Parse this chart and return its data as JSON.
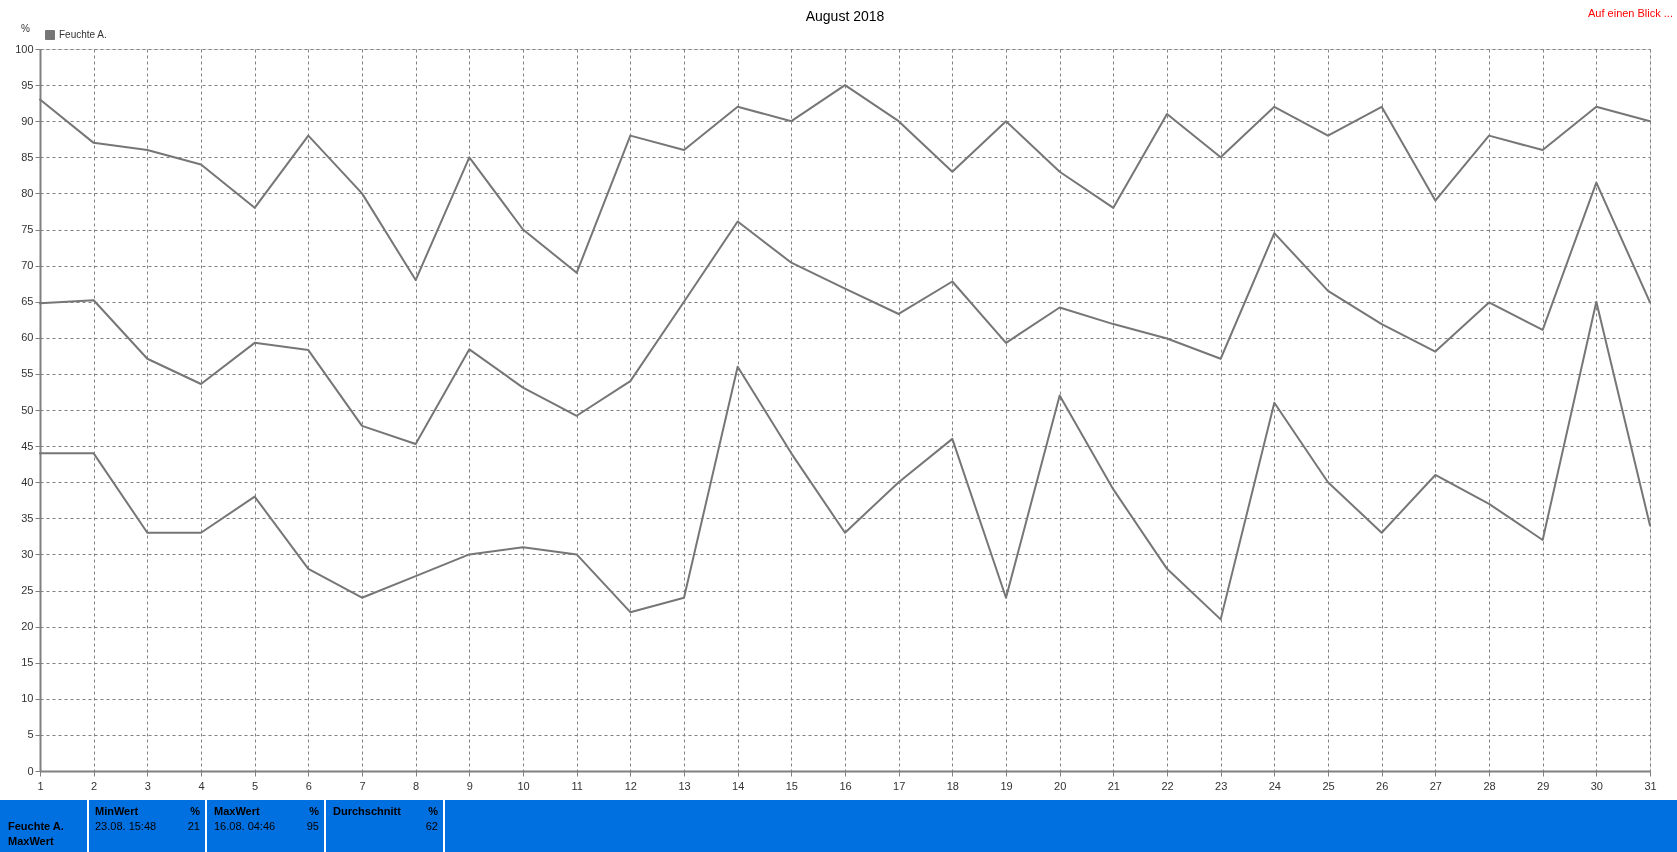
{
  "chart_data": {
    "type": "line",
    "title": "August 2018",
    "ylabel": "%",
    "x": [
      1,
      2,
      3,
      4,
      5,
      6,
      7,
      8,
      9,
      10,
      11,
      12,
      13,
      14,
      15,
      16,
      17,
      18,
      19,
      20,
      21,
      22,
      23,
      24,
      25,
      26,
      27,
      28,
      29,
      30,
      31
    ],
    "xlim": [
      1,
      31
    ],
    "xticks": [
      1,
      2,
      3,
      4,
      5,
      6,
      7,
      8,
      9,
      10,
      11,
      12,
      13,
      14,
      15,
      16,
      17,
      18,
      19,
      20,
      21,
      22,
      23,
      24,
      25,
      26,
      27,
      28,
      29,
      30,
      31
    ],
    "ylim": [
      0,
      100
    ],
    "yticks": [
      0,
      5,
      10,
      15,
      20,
      25,
      30,
      35,
      40,
      45,
      50,
      55,
      60,
      65,
      70,
      75,
      80,
      85,
      90,
      95,
      100
    ],
    "grid": true,
    "legend": "top left",
    "series": [
      {
        "color": "#767676",
        "values": [
          93,
          87,
          86,
          84,
          78,
          88,
          80,
          68,
          85,
          75,
          69,
          88,
          86,
          92,
          90,
          95,
          90,
          83,
          90,
          83,
          78,
          91,
          85,
          92,
          88,
          92,
          79,
          88,
          86,
          92,
          90
        ]
      },
      {
        "name": "Feuchte A.",
        "color": "#767676",
        "values": [
          64.8,
          65.2,
          57.1,
          53.6,
          59.3,
          58.3,
          47.8,
          45.3,
          58.4,
          53.1,
          49.2,
          54,
          65,
          76.1,
          70.4,
          66.8,
          63.3,
          67.8,
          59.3,
          64.2,
          61.9,
          59.9,
          57.1,
          74.5,
          66.5,
          61.9,
          58.1,
          64.9,
          61.1,
          81.5,
          64.9
        ]
      },
      {
        "color": "#767676",
        "values": [
          44,
          44,
          33,
          33,
          38,
          28,
          24,
          27,
          30,
          31,
          30,
          22,
          24,
          56,
          44,
          33,
          40,
          46,
          24,
          52,
          39,
          28,
          21,
          51,
          40,
          33,
          41,
          37,
          32,
          65,
          34
        ]
      }
    ],
    "annotations": [
      "Auf einen Blick ...",
      "Feuchte A.",
      "MaxWert",
      "MinWert",
      "%",
      "23.08. 15:48",
      "21",
      "MaxWert",
      "%",
      "16.08. 04:46",
      "95",
      "Durchschnitt",
      "%",
      "62"
    ]
  }
}
